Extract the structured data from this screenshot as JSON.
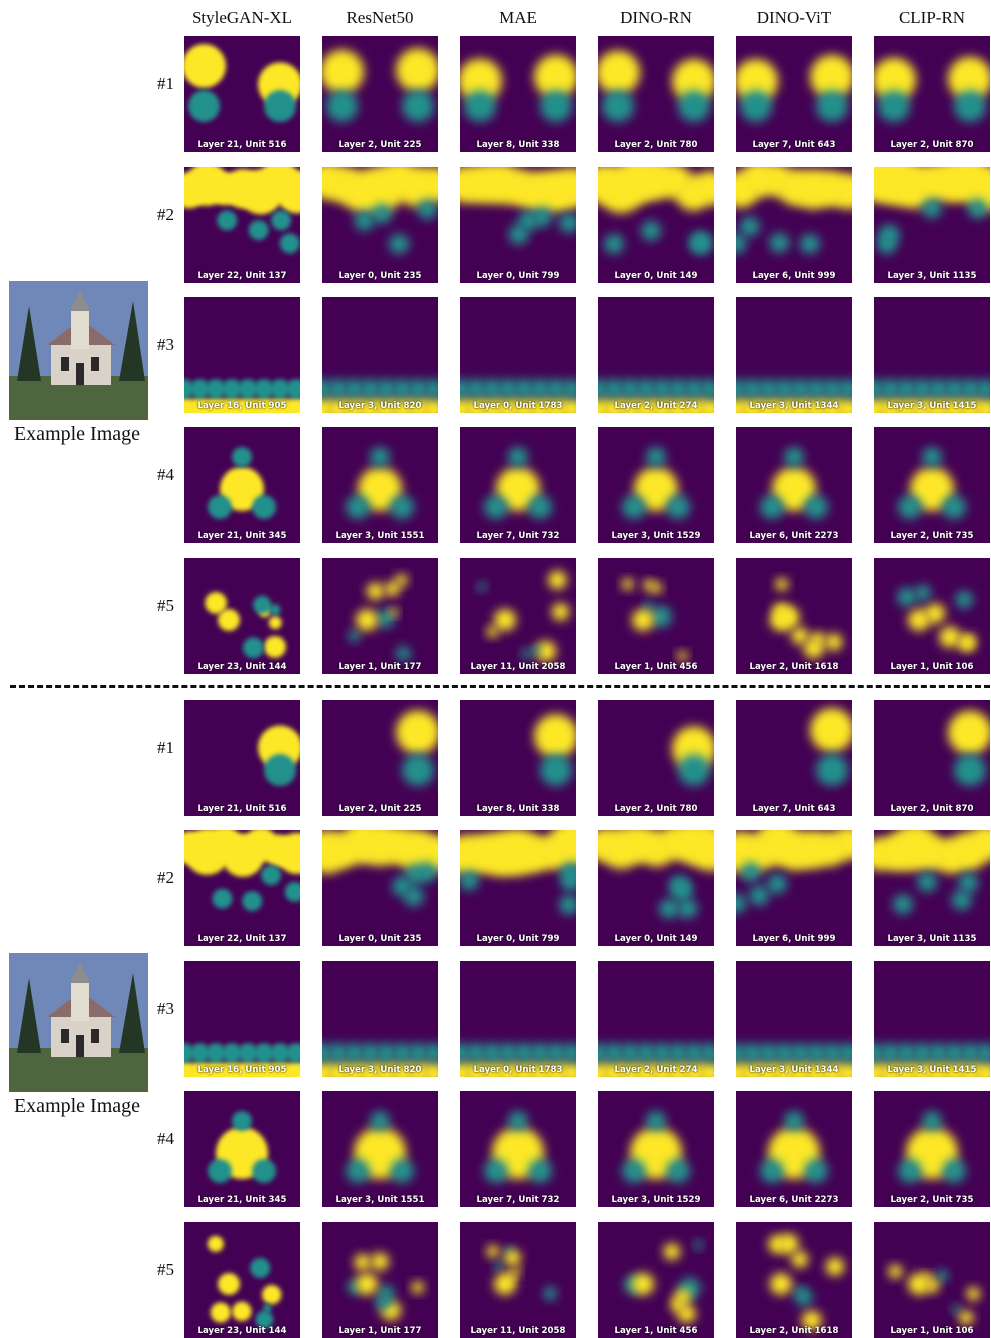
{
  "columns": [
    "StyleGAN-XL",
    "ResNet50",
    "MAE",
    "DINO-RN",
    "DINO-ViT",
    "CLIP-RN"
  ],
  "row_labels": [
    "#1",
    "#2",
    "#3",
    "#4",
    "#5"
  ],
  "example_caption": "Example Image",
  "tile_labels": [
    [
      "Layer 21, Unit 516",
      "Layer 2, Unit 225",
      "Layer 8, Unit 338",
      "Layer 2, Unit 780",
      "Layer 7, Unit 643",
      "Layer 2, Unit 870"
    ],
    [
      "Layer 22, Unit 137",
      "Layer 0, Unit 235",
      "Layer 0, Unit 799",
      "Layer 0, Unit 149",
      "Layer 6, Unit 999",
      "Layer 3, Unit 1135"
    ],
    [
      "Layer 16, Unit 905",
      "Layer 3, Unit 820",
      "Layer 0, Unit 1783",
      "Layer 2, Unit 274",
      "Layer 3, Unit 1344",
      "Layer 3, Unit 1415"
    ],
    [
      "Layer 21, Unit 345",
      "Layer 3, Unit 1551",
      "Layer 7, Unit 732",
      "Layer 3, Unit 1529",
      "Layer 6, Unit 2273",
      "Layer 2, Unit 735"
    ],
    [
      "Layer 23, Unit 144",
      "Layer 1, Unit 177",
      "Layer 11, Unit 2058",
      "Layer 1, Unit 456",
      "Layer 2, Unit 1618",
      "Layer 1, Unit 106"
    ]
  ],
  "colors": {
    "low": "#440154",
    "mid": "#21918c",
    "high": "#fde725"
  }
}
